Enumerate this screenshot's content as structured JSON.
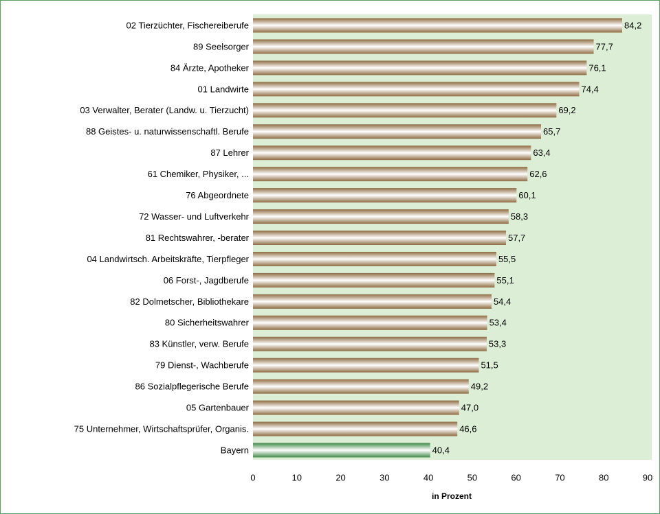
{
  "chart_data": {
    "type": "bar",
    "orientation": "horizontal",
    "categories": [
      "02 Tierzüchter, Fischereiberufe",
      "89 Seelsorger",
      "84 Ärzte, Apotheker",
      "01 Landwirte",
      "03 Verwalter, Berater (Landw. u. Tierzucht)",
      "88 Geistes- u. naturwissenschaftl. Berufe",
      "87 Lehrer",
      "61 Chemiker, Physiker, ...",
      "76 Abgeordnete",
      "72 Wasser- und Luftverkehr",
      "81 Rechtswahrer, -berater",
      "04 Landwirtsch. Arbeitskräfte, Tierpfleger",
      "06 Forst-, Jagdberufe",
      "82 Dolmetscher, Bibliothekare",
      "80 Sicherheitswahrer",
      "83 Künstler, verw. Berufe",
      "79 Dienst-, Wachberufe",
      "86 Sozialpflegerische Berufe",
      "05 Gartenbauer",
      "75 Unternehmer, Wirtschaftsprüfer, Organis.",
      "Bayern"
    ],
    "values": [
      84.2,
      77.7,
      76.1,
      74.4,
      69.2,
      65.7,
      63.4,
      62.6,
      60.1,
      58.3,
      57.7,
      55.5,
      55.1,
      54.4,
      53.4,
      53.3,
      51.5,
      49.2,
      47.0,
      46.6,
      40.4
    ],
    "value_labels": [
      "84,2",
      "77,7",
      "76,1",
      "74,4",
      "69,2",
      "65,7",
      "63,4",
      "62,6",
      "60,1",
      "58,3",
      "57,7",
      "55,5",
      "55,1",
      "54,4",
      "53,4",
      "53,3",
      "51,5",
      "49,2",
      "47,0",
      "46,6",
      "40,4"
    ],
    "colors": [
      "#8e6c42",
      "#8e6c42",
      "#8e6c42",
      "#8e6c42",
      "#8e6c42",
      "#8e6c42",
      "#8e6c42",
      "#8e6c42",
      "#8e6c42",
      "#8e6c42",
      "#8e6c42",
      "#8e6c42",
      "#8e6c42",
      "#8e6c42",
      "#8e6c42",
      "#8e6c42",
      "#8e6c42",
      "#8e6c42",
      "#8e6c42",
      "#8e6c42",
      "#3f8a4a"
    ],
    "xlabel": "in Prozent",
    "xlim": [
      0,
      90
    ],
    "xticks": [
      0,
      10,
      20,
      30,
      40,
      50,
      60,
      70,
      80,
      90
    ],
    "grid": false
  }
}
